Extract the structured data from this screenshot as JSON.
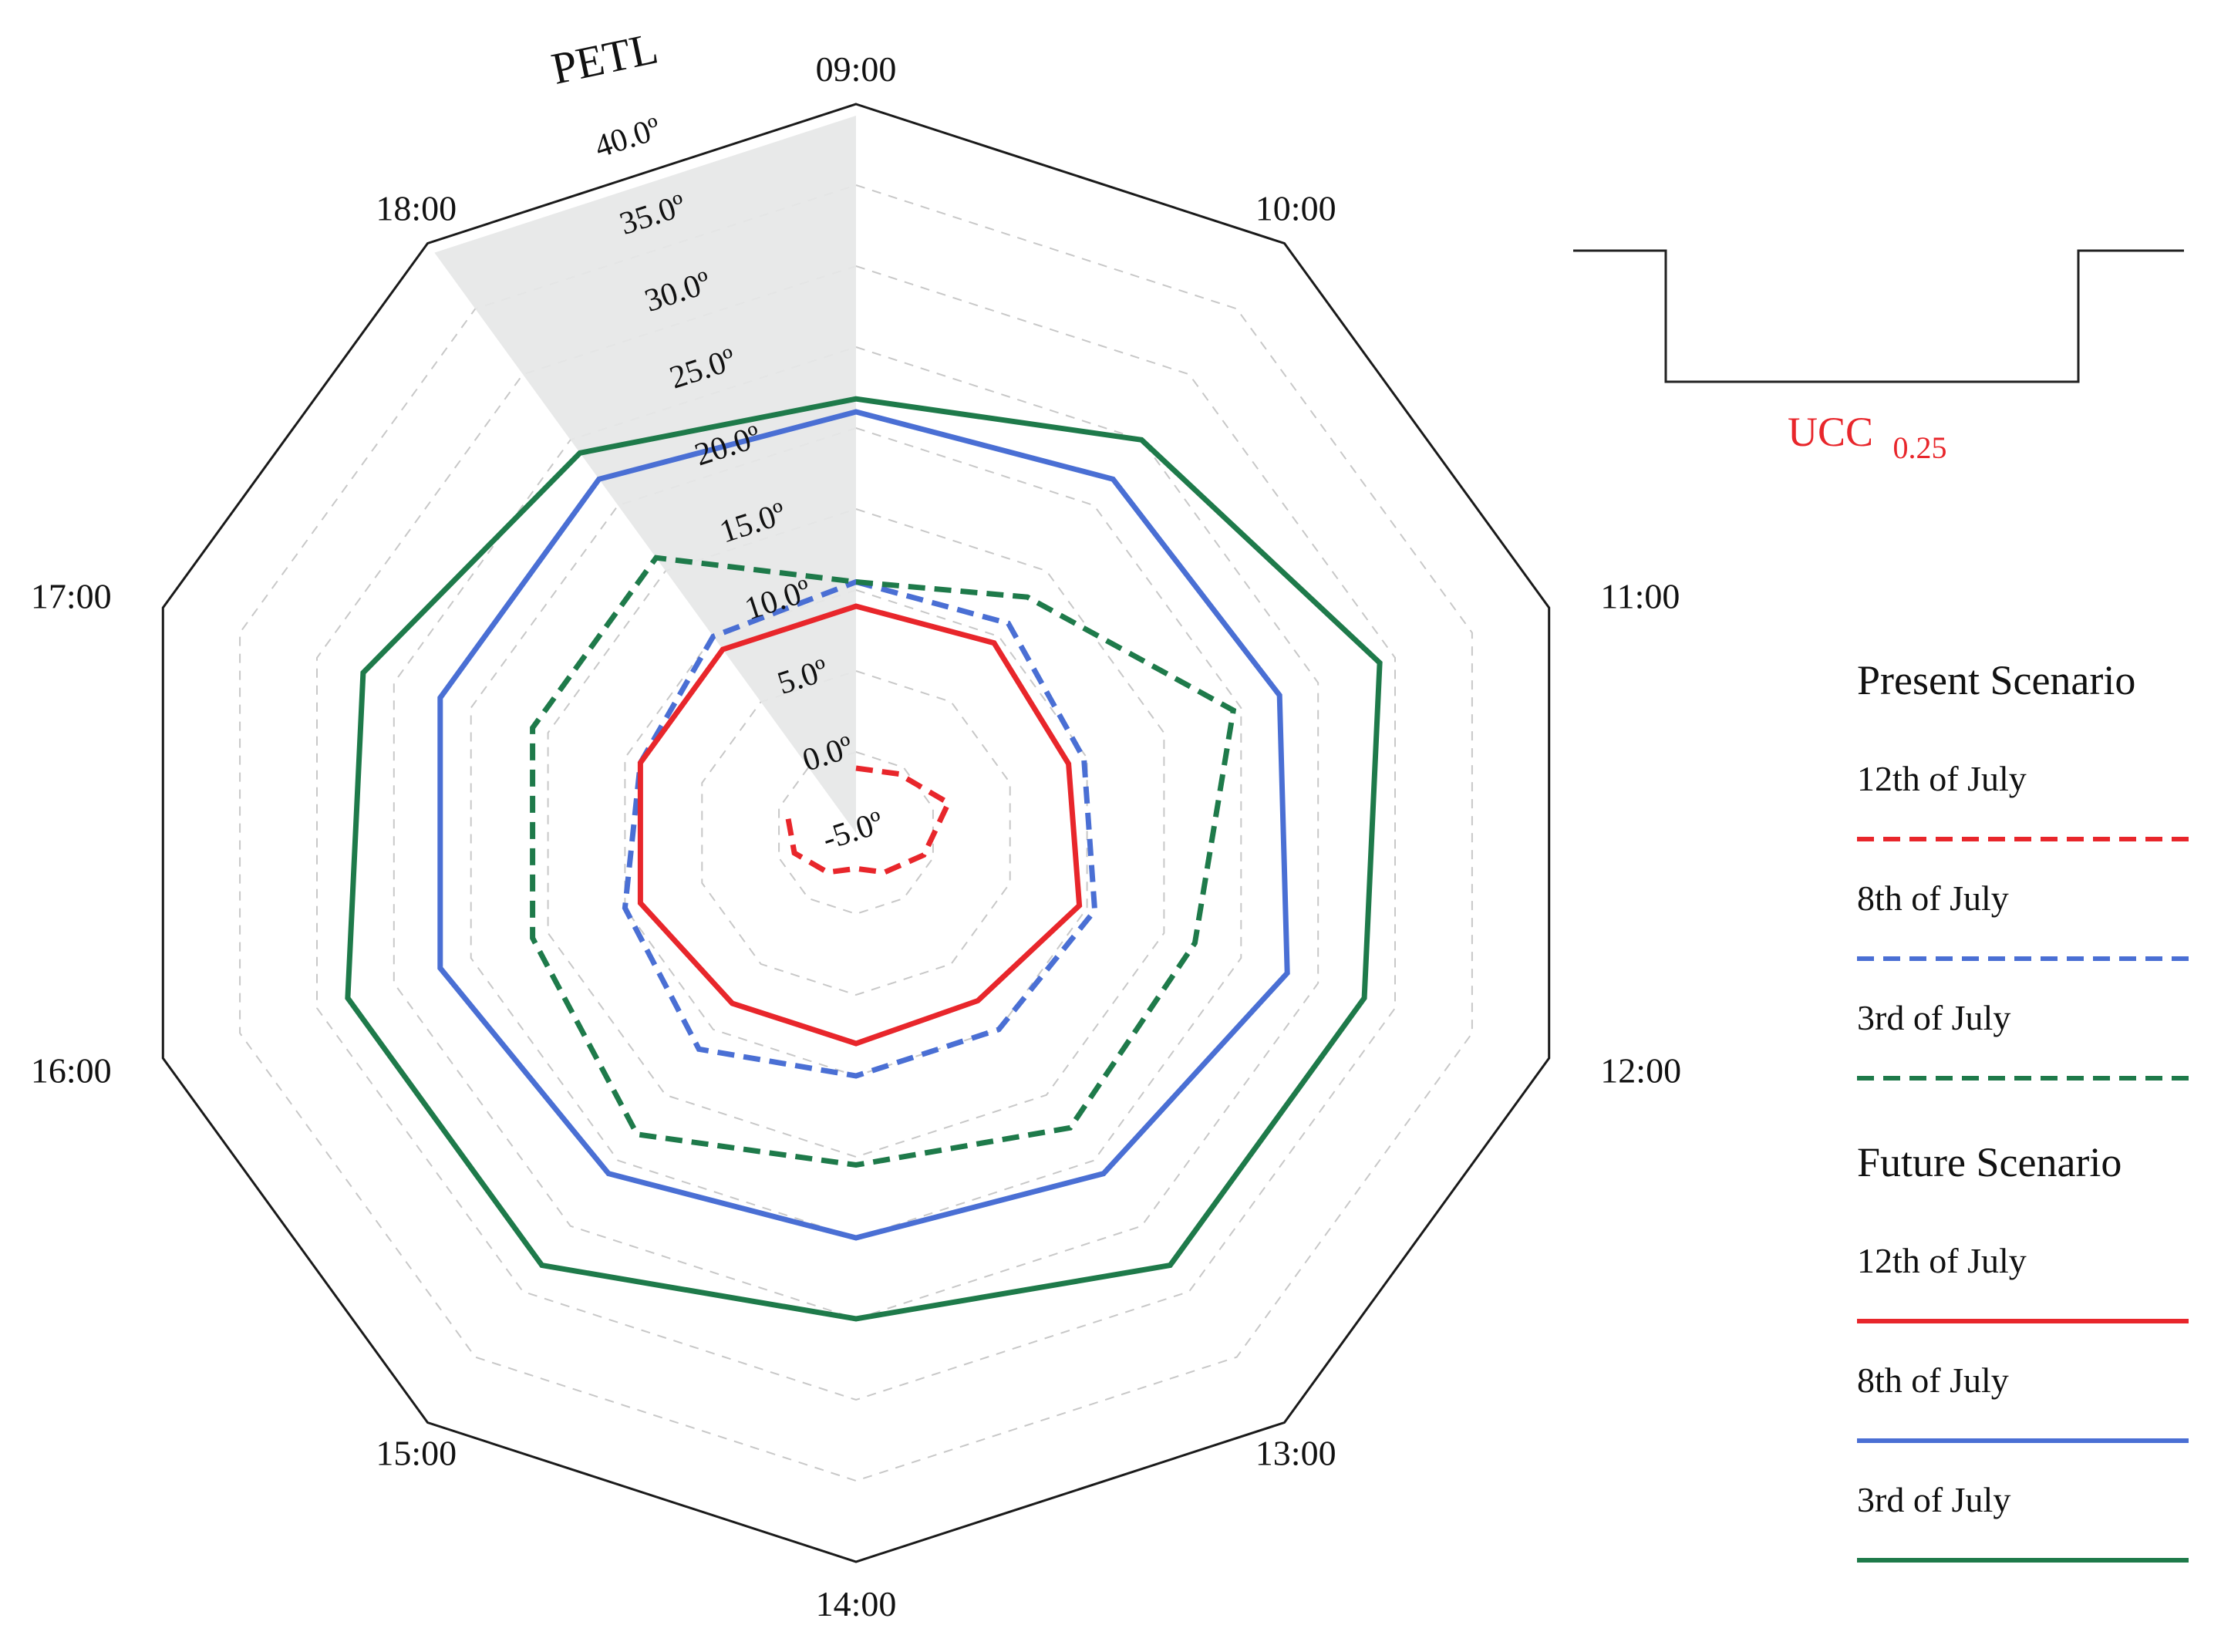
{
  "chart_data": {
    "type": "radar",
    "title": "",
    "axis_title": "PETL",
    "categories": [
      "09:00",
      "10:00",
      "11:00",
      "12:00",
      "13:00",
      "14:00",
      "15:00",
      "16:00",
      "17:00",
      "18:00"
    ],
    "radial_range": [
      -5,
      40
    ],
    "radial_ticks": [
      -5,
      0,
      5,
      10,
      15,
      20,
      25,
      30,
      35,
      40
    ],
    "radial_tick_labels": [
      "-5.0º",
      "0.0º",
      "5.0º",
      "10.0º",
      "15.0º",
      "20.0º",
      "25.0º",
      "30.0º",
      "35.0º",
      "40.0º"
    ],
    "grid": true,
    "series": [
      {
        "key": "present_12",
        "group": "Present Scenario",
        "name": "12th of July",
        "color": "#e8262b",
        "dash": true,
        "values": [
          -1.0,
          -0.5,
          1.0,
          -0.6,
          -2.0,
          -2.8,
          -2.0,
          -1.0,
          -0.5,
          null
        ]
      },
      {
        "key": "present_8",
        "group": "Present Scenario",
        "name": "8th of July",
        "color": "#4a6fd4",
        "dash": true,
        "values": [
          10.5,
          11.0,
          9.8,
          10.5,
          10.0,
          10.0,
          11.5,
          10.0,
          9.0,
          10.0
        ]
      },
      {
        "key": "present_3",
        "group": "Present Scenario",
        "name": "3rd of July",
        "color": "#1e7a4a",
        "dash": true,
        "values": [
          10.5,
          13.0,
          19.5,
          17.0,
          17.5,
          15.5,
          18.0,
          16.0,
          16.0,
          16.0
        ]
      },
      {
        "key": "future_12",
        "group": "Future Scenario",
        "name": "12th of July",
        "color": "#e8262b",
        "dash": false,
        "values": [
          9.0,
          9.5,
          8.8,
          9.5,
          7.8,
          8.0,
          8.0,
          9.0,
          9.0,
          9.0
        ]
      },
      {
        "key": "future_8",
        "group": "Future Scenario",
        "name": "8th of July",
        "color": "#4a6fd4",
        "dash": false,
        "values": [
          21.0,
          22.0,
          22.5,
          23.0,
          21.0,
          20.0,
          21.0,
          22.0,
          22.0,
          22.0
        ]
      },
      {
        "key": "future_3",
        "group": "Future Scenario",
        "name": "3rd of July",
        "color": "#1e7a4a",
        "dash": false,
        "values": [
          21.8,
          25.0,
          29.0,
          28.0,
          28.0,
          25.0,
          28.0,
          28.0,
          27.0,
          24.0
        ]
      }
    ],
    "legend": {
      "position": "right",
      "groups": [
        {
          "heading": "Present Scenario",
          "items": [
            "present_12",
            "present_8",
            "present_3"
          ]
        },
        {
          "heading": "Future Scenario",
          "items": [
            "future_12",
            "future_8",
            "future_3"
          ]
        }
      ]
    },
    "annotation": {
      "label": "UCC",
      "subscript": "0.25",
      "color": "#e8262b"
    }
  }
}
